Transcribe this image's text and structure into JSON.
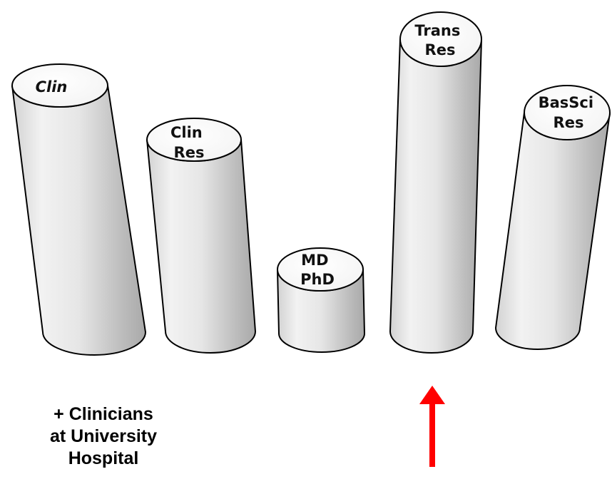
{
  "cylinders": [
    {
      "id": "clin",
      "lines": [
        "Clin"
      ],
      "italic": true
    },
    {
      "id": "clin-res",
      "lines": [
        "Clin",
        "Res"
      ],
      "italic": false
    },
    {
      "id": "md-phd",
      "lines": [
        "MD",
        "PhD"
      ],
      "italic": false
    },
    {
      "id": "trans-res",
      "lines": [
        "Trans",
        "Res"
      ],
      "italic": false
    },
    {
      "id": "bassci-res",
      "lines": [
        "BasSci",
        "Res"
      ],
      "italic": false
    }
  ],
  "footnote": {
    "line1": "+ Clinicians",
    "line2": "at University",
    "line3": "Hospital"
  },
  "arrow": {
    "color": "#ff0000",
    "points_to": "trans-res"
  }
}
